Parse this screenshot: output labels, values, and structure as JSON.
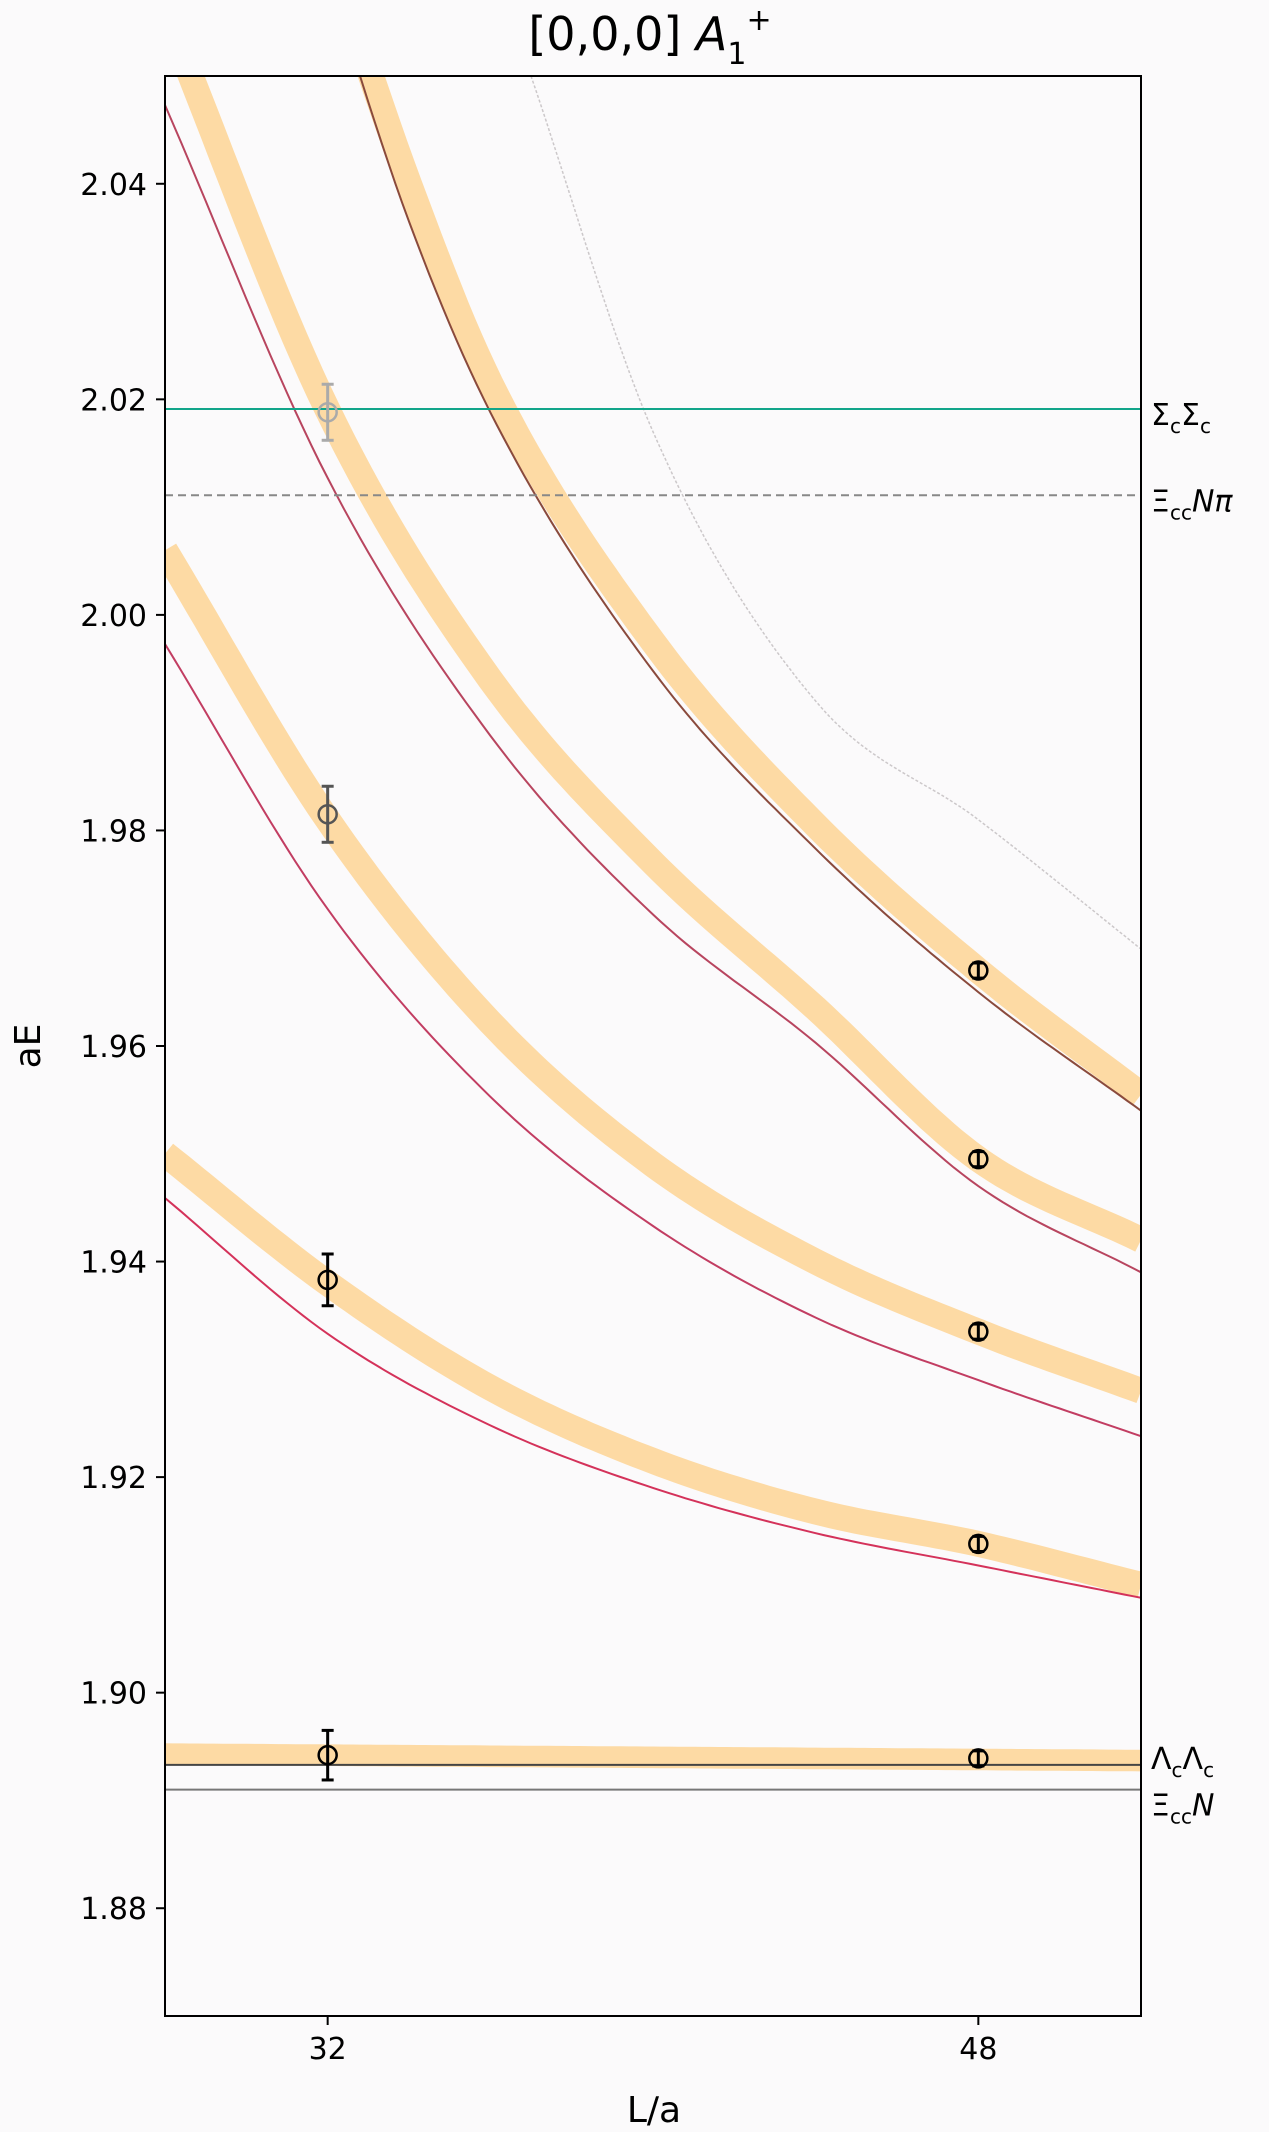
{
  "chart_data": {
    "type": "line",
    "title": "[0,0,0] A1+",
    "xlabel": "L/a",
    "ylabel": "aE",
    "xlim": [
      28,
      52
    ],
    "ylim": [
      1.87,
      2.05
    ],
    "x_ticks": [
      32,
      48
    ],
    "y_ticks": [
      1.88,
      1.9,
      1.92,
      1.94,
      1.96,
      1.98,
      2.0,
      2.02,
      2.04
    ],
    "grid": false,
    "thresholds": [
      {
        "name": "ΣcΣc",
        "y": 2.0191,
        "style": "solid",
        "color": "#12a58a"
      },
      {
        "name": "ΞccNπ",
        "y": 2.0111,
        "style": "dashed",
        "color": "#888888"
      },
      {
        "name": "ΛcΛc",
        "y": 1.8933,
        "style": "solid",
        "color": "#444444"
      },
      {
        "name": "ΞccN",
        "y": 1.891,
        "style": "solid",
        "color": "#777777"
      }
    ],
    "noninteracting_curves": [
      {
        "x": [
          28,
          32,
          36,
          40,
          44,
          48,
          52
        ],
        "y": [
          1.9459,
          1.9333,
          1.9248,
          1.919,
          1.9148,
          1.9118,
          1.9088
        ]
      },
      {
        "x": [
          28,
          32,
          36,
          40,
          44,
          48,
          52
        ],
        "y": [
          1.9973,
          1.9727,
          1.9553,
          1.9433,
          1.9348,
          1.929,
          1.9238
        ]
      },
      {
        "x": [
          28,
          32,
          36,
          40,
          44,
          48,
          52
        ],
        "y": [
          2.0473,
          2.0127,
          1.9888,
          1.9722,
          1.9603,
          1.947,
          1.939
        ]
      },
      {
        "x": [
          32,
          34,
          36,
          40,
          44,
          48,
          52
        ],
        "y": [
          2.0593,
          2.0365,
          2.0188,
          1.9948,
          1.9783,
          1.965,
          1.954
        ]
      }
    ],
    "upper_curve": {
      "x": [
        37,
        40,
        44,
        48,
        52
      ],
      "y": [
        2.05,
        2.017,
        1.992,
        1.981,
        1.969
      ]
    },
    "fit_bands": [
      {
        "x": [
          28,
          32,
          36,
          40,
          44,
          48,
          52
        ],
        "y": [
          1.95,
          1.938,
          1.9283,
          1.9215,
          1.9168,
          1.9138,
          1.91
        ],
        "half_width": 0.0012
      },
      {
        "x": [
          28,
          32,
          36,
          40,
          44,
          48,
          52
        ],
        "y": [
          2.006,
          1.981,
          1.9622,
          1.949,
          1.94,
          1.9335,
          1.928
        ],
        "half_width": 0.0012
      },
      {
        "x": [
          28,
          32,
          36,
          40,
          44,
          48,
          52
        ],
        "y": [
          2.056,
          2.019,
          1.994,
          1.977,
          1.9635,
          1.9495,
          1.942
        ],
        "half_width": 0.0012
      },
      {
        "x": [
          32,
          34,
          36,
          40,
          44,
          48,
          52
        ],
        "y": [
          2.062,
          2.04,
          2.0215,
          1.9975,
          1.9805,
          1.967,
          1.9555
        ],
        "half_width": 0.0012
      },
      {
        "x": [
          28,
          52
        ],
        "y": [
          1.8943,
          1.8937
        ],
        "half_width": 0.001
      }
    ],
    "data_points": [
      {
        "x": 32,
        "y": 1.8942,
        "err": 0.0023,
        "color": "#000000"
      },
      {
        "x": 32,
        "y": 1.9383,
        "err": 0.0024,
        "color": "#000000"
      },
      {
        "x": 32,
        "y": 1.9815,
        "err": 0.0026,
        "color": "#555555"
      },
      {
        "x": 32,
        "y": 2.0188,
        "err": 0.0026,
        "color": "#aaaaaa"
      },
      {
        "x": 48,
        "y": 1.8939,
        "err": 0.0007,
        "color": "#000000"
      },
      {
        "x": 48,
        "y": 1.9138,
        "err": 0.0007,
        "color": "#000000"
      },
      {
        "x": 48,
        "y": 1.9335,
        "err": 0.0007,
        "color": "#000000"
      },
      {
        "x": 48,
        "y": 1.9495,
        "err": 0.0007,
        "color": "#000000"
      },
      {
        "x": 48,
        "y": 1.967,
        "err": 0.0007,
        "color": "#000000"
      }
    ]
  }
}
